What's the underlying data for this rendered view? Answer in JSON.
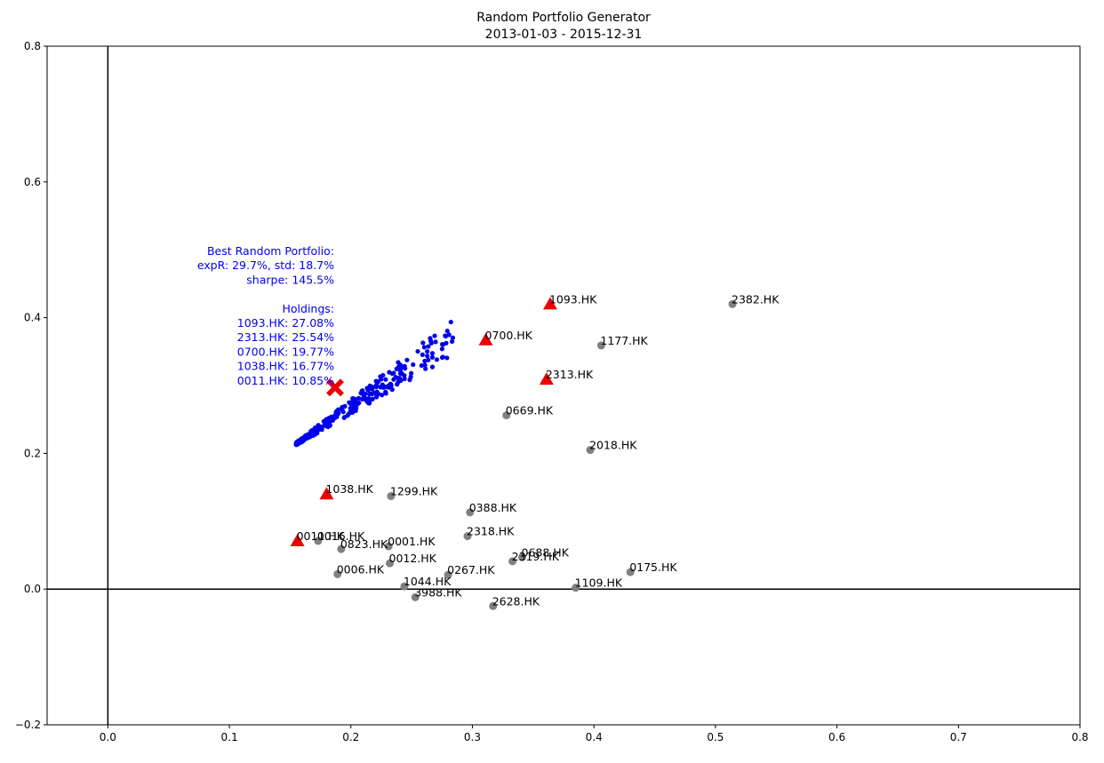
{
  "chart_data": {
    "type": "scatter",
    "title": "Random Portfolio Generator",
    "subtitle": "2013-01-03 - 2015-12-31",
    "xlim": [
      -0.05,
      0.8
    ],
    "ylim": [
      -0.2,
      0.8
    ],
    "x_ticks": [
      0.0,
      0.1,
      0.2,
      0.3,
      0.4,
      0.5,
      0.6,
      0.7,
      0.8
    ],
    "y_ticks": [
      -0.2,
      0.0,
      0.2,
      0.4,
      0.6,
      0.8
    ],
    "x_tick_labels": [
      "0.0",
      "0.1",
      "0.2",
      "0.3",
      "0.4",
      "0.5",
      "0.6",
      "0.7",
      "0.8"
    ],
    "y_tick_labels": [
      "−0.2",
      "0.0",
      "0.2",
      "0.4",
      "0.6",
      "0.8"
    ],
    "grid": false,
    "reference_lines": {
      "x": 0,
      "y": 0
    },
    "colors": {
      "stocks": "#808080",
      "holdings": "#ee0000",
      "portfolios": "#0000ee",
      "best": "#ee0000",
      "annotation": "#0000ee"
    },
    "stocks": [
      {
        "name": "2382.HK",
        "x": 0.514,
        "y": 0.42
      },
      {
        "name": "1177.HK",
        "x": 0.406,
        "y": 0.359
      },
      {
        "name": "0669.HK",
        "x": 0.328,
        "y": 0.256
      },
      {
        "name": "2018.HK",
        "x": 0.397,
        "y": 0.205
      },
      {
        "name": "1299.HK",
        "x": 0.233,
        "y": 0.137
      },
      {
        "name": "0388.HK",
        "x": 0.298,
        "y": 0.113
      },
      {
        "name": "0016.HK",
        "x": 0.173,
        "y": 0.071
      },
      {
        "name": "0823.HK",
        "x": 0.192,
        "y": 0.059
      },
      {
        "name": "0001.HK",
        "x": 0.231,
        "y": 0.063
      },
      {
        "name": "2318.HK",
        "x": 0.296,
        "y": 0.078
      },
      {
        "name": "0688.HK",
        "x": 0.341,
        "y": 0.047
      },
      {
        "name": "2319.HK",
        "x": 0.333,
        "y": 0.041
      },
      {
        "name": "0012.HK",
        "x": 0.232,
        "y": 0.038
      },
      {
        "name": "0006.HK",
        "x": 0.189,
        "y": 0.022
      },
      {
        "name": "0267.HK",
        "x": 0.28,
        "y": 0.021
      },
      {
        "name": "0175.HK",
        "x": 0.43,
        "y": 0.025
      },
      {
        "name": "1044.HK",
        "x": 0.244,
        "y": 0.004
      },
      {
        "name": "1109.HK",
        "x": 0.385,
        "y": 0.002
      },
      {
        "name": "3988.HK",
        "x": 0.253,
        "y": -0.012
      },
      {
        "name": "2628.HK",
        "x": 0.317,
        "y": -0.025
      }
    ],
    "holdings": [
      {
        "name": "1093.HK",
        "x": 0.364,
        "y": 0.42
      },
      {
        "name": "0700.HK",
        "x": 0.311,
        "y": 0.367
      },
      {
        "name": "2313.HK",
        "x": 0.361,
        "y": 0.309
      },
      {
        "name": "1038.HK",
        "x": 0.18,
        "y": 0.14
      },
      {
        "name": "0011.HK",
        "x": 0.156,
        "y": 0.071
      }
    ],
    "best_portfolio": {
      "x": 0.187,
      "y": 0.297
    },
    "portfolio_cloud": {
      "count": 300,
      "x_range": [
        0.155,
        0.285
      ],
      "y_at_low_x": 0.213,
      "slope": 1.12
    },
    "annotation_lines": [
      "Best Random Portfolio:",
      "expR: 29.7%, std: 18.7%",
      "sharpe: 145.5%",
      "",
      "Holdings:",
      "1093.HK: 27.08%",
      "2313.HK: 25.54%",
      "0700.HK: 19.77%",
      "1038.HK: 16.77%",
      "0011.HK: 10.85%"
    ]
  }
}
